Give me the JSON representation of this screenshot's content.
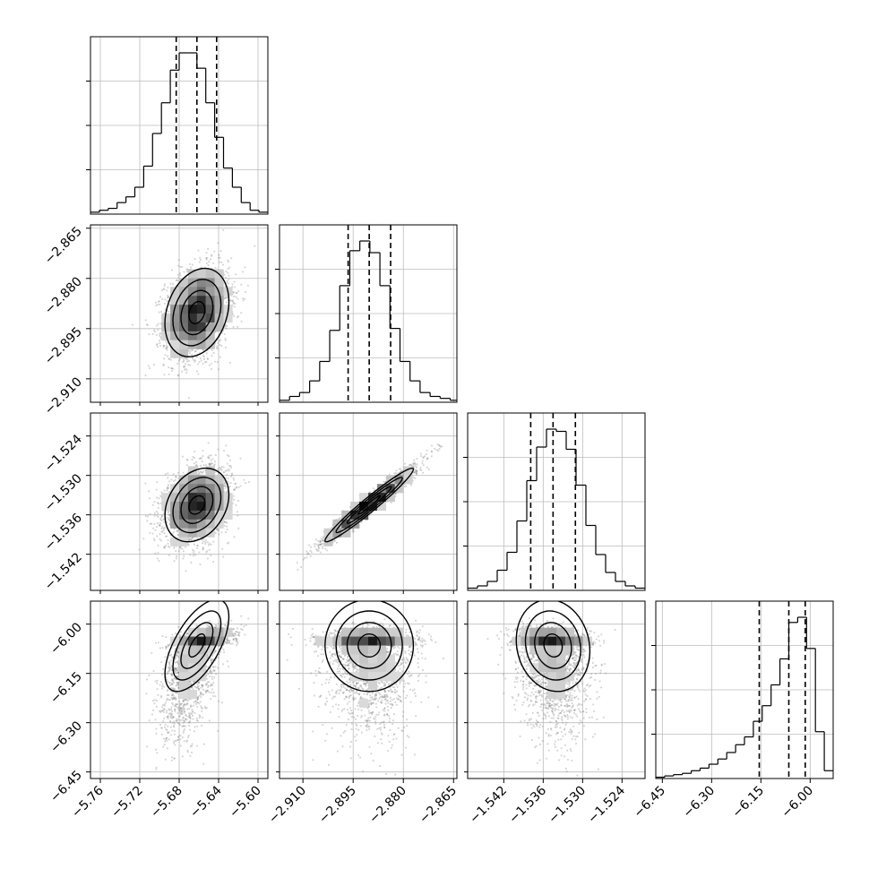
{
  "chart_data": {
    "type": "corner",
    "title": "",
    "params": [
      {
        "xlim": [
          -5.77,
          -5.59
        ],
        "ticks": [
          -5.76,
          -5.72,
          -5.68,
          -5.64,
          -5.6
        ],
        "tick_labels": [
          "−5.76",
          "−5.72",
          "−5.68",
          "−5.64",
          "−5.60"
        ],
        "quantiles": [
          -5.683,
          -5.662,
          -5.642
        ],
        "hist": {
          "edges": [
            -5.77,
            -5.761,
            -5.752,
            -5.743,
            -5.734,
            -5.725,
            -5.716,
            -5.707,
            -5.698,
            -5.689,
            -5.68,
            -5.671,
            -5.662,
            -5.653,
            -5.644,
            -5.635,
            -5.626,
            -5.617,
            -5.608,
            -5.599,
            -5.59
          ],
          "counts": [
            1,
            2,
            3,
            6,
            9,
            14,
            25,
            42,
            58,
            75,
            84,
            84,
            76,
            58,
            40,
            24,
            14,
            6,
            2,
            1
          ]
        }
      },
      {
        "xlim": [
          -2.917,
          -2.864
        ],
        "ticks": [
          -2.91,
          -2.895,
          -2.88,
          -2.865
        ],
        "tick_labels": [
          "−2.910",
          "−2.895",
          "−2.880",
          "−2.865"
        ],
        "quantiles": [
          -2.8965,
          -2.8902,
          -2.8838
        ],
        "hist": {
          "edges": [
            -2.917,
            -2.914,
            -2.911,
            -2.908,
            -2.905,
            -2.902,
            -2.899,
            -2.896,
            -2.893,
            -2.89,
            -2.887,
            -2.884,
            -2.881,
            -2.878,
            -2.875,
            -2.872,
            -2.869,
            -2.866,
            -2.863
          ],
          "counts": [
            1,
            3,
            5,
            11,
            21,
            37,
            60,
            78,
            83,
            77,
            60,
            38,
            21,
            11,
            5,
            3,
            2,
            1
          ]
        }
      },
      {
        "xlim": [
          -1.5475,
          -1.5205
        ],
        "ticks": [
          -1.542,
          -1.536,
          -1.53,
          -1.524
        ],
        "tick_labels": [
          "−1.542",
          "−1.536",
          "−1.530",
          "−1.524"
        ],
        "quantiles": [
          -1.5379,
          -1.5345,
          -1.5311
        ],
        "hist": {
          "edges": [
            -1.5475,
            -1.546,
            -1.5445,
            -1.543,
            -1.5415,
            -1.54,
            -1.5385,
            -1.537,
            -1.5355,
            -1.534,
            -1.5325,
            -1.531,
            -1.5295,
            -1.528,
            -1.5265,
            -1.525,
            -1.5235,
            -1.522,
            -1.5205
          ],
          "counts": [
            1,
            2,
            4,
            9,
            17,
            31,
            49,
            64,
            72,
            71,
            63,
            47,
            29,
            16,
            8,
            4,
            2,
            1
          ]
        }
      },
      {
        "xlim": [
          -6.47,
          -5.93
        ],
        "ticks": [
          -6.45,
          -6.3,
          -6.15,
          -6.0
        ],
        "tick_labels": [
          "−6.45",
          "−6.30",
          "−6.15",
          "−6.00"
        ],
        "quantiles": [
          -6.155,
          -6.065,
          -6.015
        ],
        "hist": {
          "edges": [
            -6.47,
            -6.443,
            -6.416,
            -6.389,
            -6.362,
            -6.335,
            -6.308,
            -6.281,
            -6.254,
            -6.227,
            -6.2,
            -6.173,
            -6.146,
            -6.119,
            -6.092,
            -6.065,
            -6.038,
            -6.011,
            -5.984,
            -5.957,
            -5.93
          ],
          "counts": [
            0.5,
            1,
            1.5,
            2,
            3,
            4,
            5.5,
            7.5,
            10,
            13,
            16,
            22,
            28,
            36,
            46,
            60,
            62,
            50,
            18,
            3
          ]
        }
      }
    ],
    "pairs": [
      {
        "row": 1,
        "col": 0,
        "mean": [
          -5.662,
          -2.8902
        ],
        "sd": [
          0.0162,
          0.0066
        ],
        "corr": 0.25,
        "skew": 0
      },
      {
        "row": 2,
        "col": 0,
        "mean": [
          -5.662,
          -1.5345
        ],
        "sd": [
          0.0162,
          0.0028
        ],
        "corr": 0.28,
        "skew": 0
      },
      {
        "row": 2,
        "col": 1,
        "mean": [
          -2.8902,
          -1.5345
        ],
        "sd": [
          0.0066,
          0.0028
        ],
        "corr": 0.97,
        "skew": 0
      },
      {
        "row": 3,
        "col": 0,
        "mean": [
          -5.662,
          -6.065
        ],
        "sd": [
          0.0162,
          0.07
        ],
        "corr": 0.62,
        "skew": 1
      },
      {
        "row": 3,
        "col": 1,
        "mean": [
          -2.8902,
          -6.065
        ],
        "sd": [
          0.0066,
          0.07
        ],
        "corr": 0.0,
        "skew": 1
      },
      {
        "row": 3,
        "col": 2,
        "mean": [
          -1.5345,
          -6.065
        ],
        "sd": [
          0.0028,
          0.07
        ],
        "corr": -0.12,
        "skew": 1
      }
    ]
  }
}
